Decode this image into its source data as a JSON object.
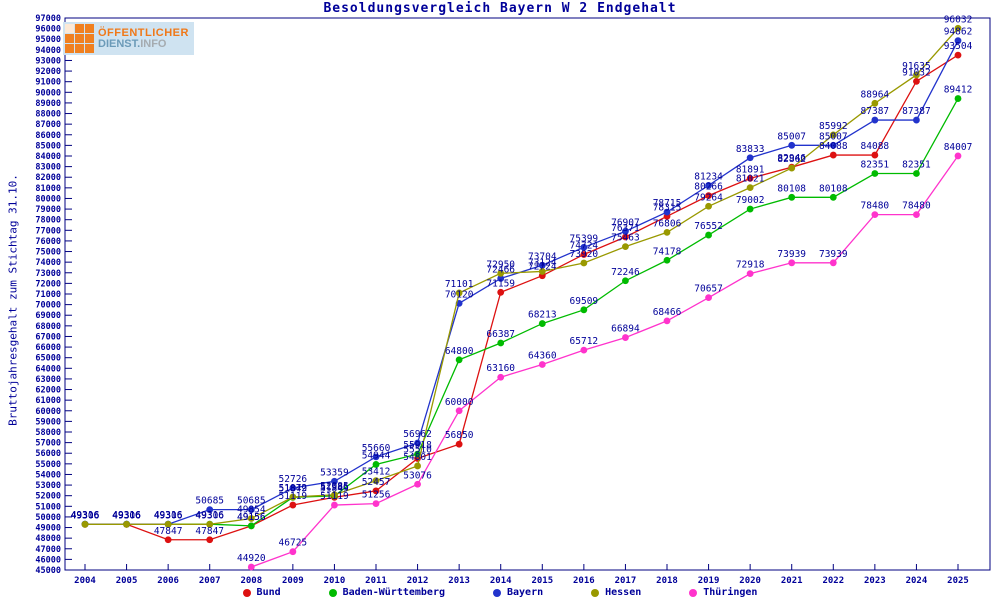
{
  "logo": {
    "line1": "ÖFFENTLICHER",
    "line2_a": "DIENST.",
    "line2_b": "INFO"
  },
  "chart_data": {
    "type": "line",
    "title": "Besoldungsvergleich Bayern W 2 Endgehalt",
    "ylabel": "Bruttojahresgehalt zum Stichtag 31.10.",
    "xlabel": "",
    "ylim": [
      45000,
      97000
    ],
    "ytick_step": 1000,
    "grid": false,
    "legend_position": "bottom",
    "text_color": "#000099",
    "x": [
      2004,
      2005,
      2006,
      2007,
      2008,
      2009,
      2010,
      2011,
      2012,
      2013,
      2014,
      2015,
      2016,
      2017,
      2018,
      2019,
      2020,
      2021,
      2022,
      2023,
      2024,
      2025
    ],
    "series": [
      {
        "name": "Bund",
        "color": "#dd1111",
        "values": [
          49306,
          49306,
          47847,
          47847,
          49156,
          51119,
          51849,
          52457,
          55510,
          56850,
          71159,
          72724,
          74724,
          76371,
          78315,
          80266,
          81891,
          82946,
          84088,
          84088,
          91032,
          93504
        ]
      },
      {
        "name": "Baden-Württemberg",
        "color": "#00bb00",
        "values": [
          49316,
          49316,
          49316,
          49316,
          49156,
          51849,
          51986,
          54944,
          55918,
          64800,
          66387,
          68213,
          69509,
          72246,
          74178,
          76552,
          79002,
          80108,
          80108,
          82351,
          82351,
          89412
        ]
      },
      {
        "name": "Bayern",
        "color": "#2233cc",
        "values": [
          49316,
          49316,
          49316,
          50685,
          50685,
          52726,
          53359,
          55660,
          56962,
          70120,
          72466,
          73704,
          75399,
          76907,
          78715,
          81234,
          83833,
          85007,
          85007,
          87387,
          87387,
          94862
        ]
      },
      {
        "name": "Hessen",
        "color": "#999900",
        "values": [
          49306,
          49306,
          49306,
          49306,
          49854,
          51872,
          52085,
          53412,
          54801,
          71101,
          72950,
          73124,
          73920,
          75463,
          76806,
          79264,
          81021,
          82862,
          85992,
          88964,
          91635,
          96032
        ]
      },
      {
        "name": "Thüringen",
        "color": "#ff33cc",
        "values": [
          null,
          null,
          null,
          null,
          44920,
          46725,
          51119,
          51256,
          53076,
          60000,
          63160,
          64360,
          65712,
          66894,
          68466,
          70657,
          72918,
          73939,
          73939,
          78480,
          78480,
          84007
        ]
      }
    ]
  }
}
